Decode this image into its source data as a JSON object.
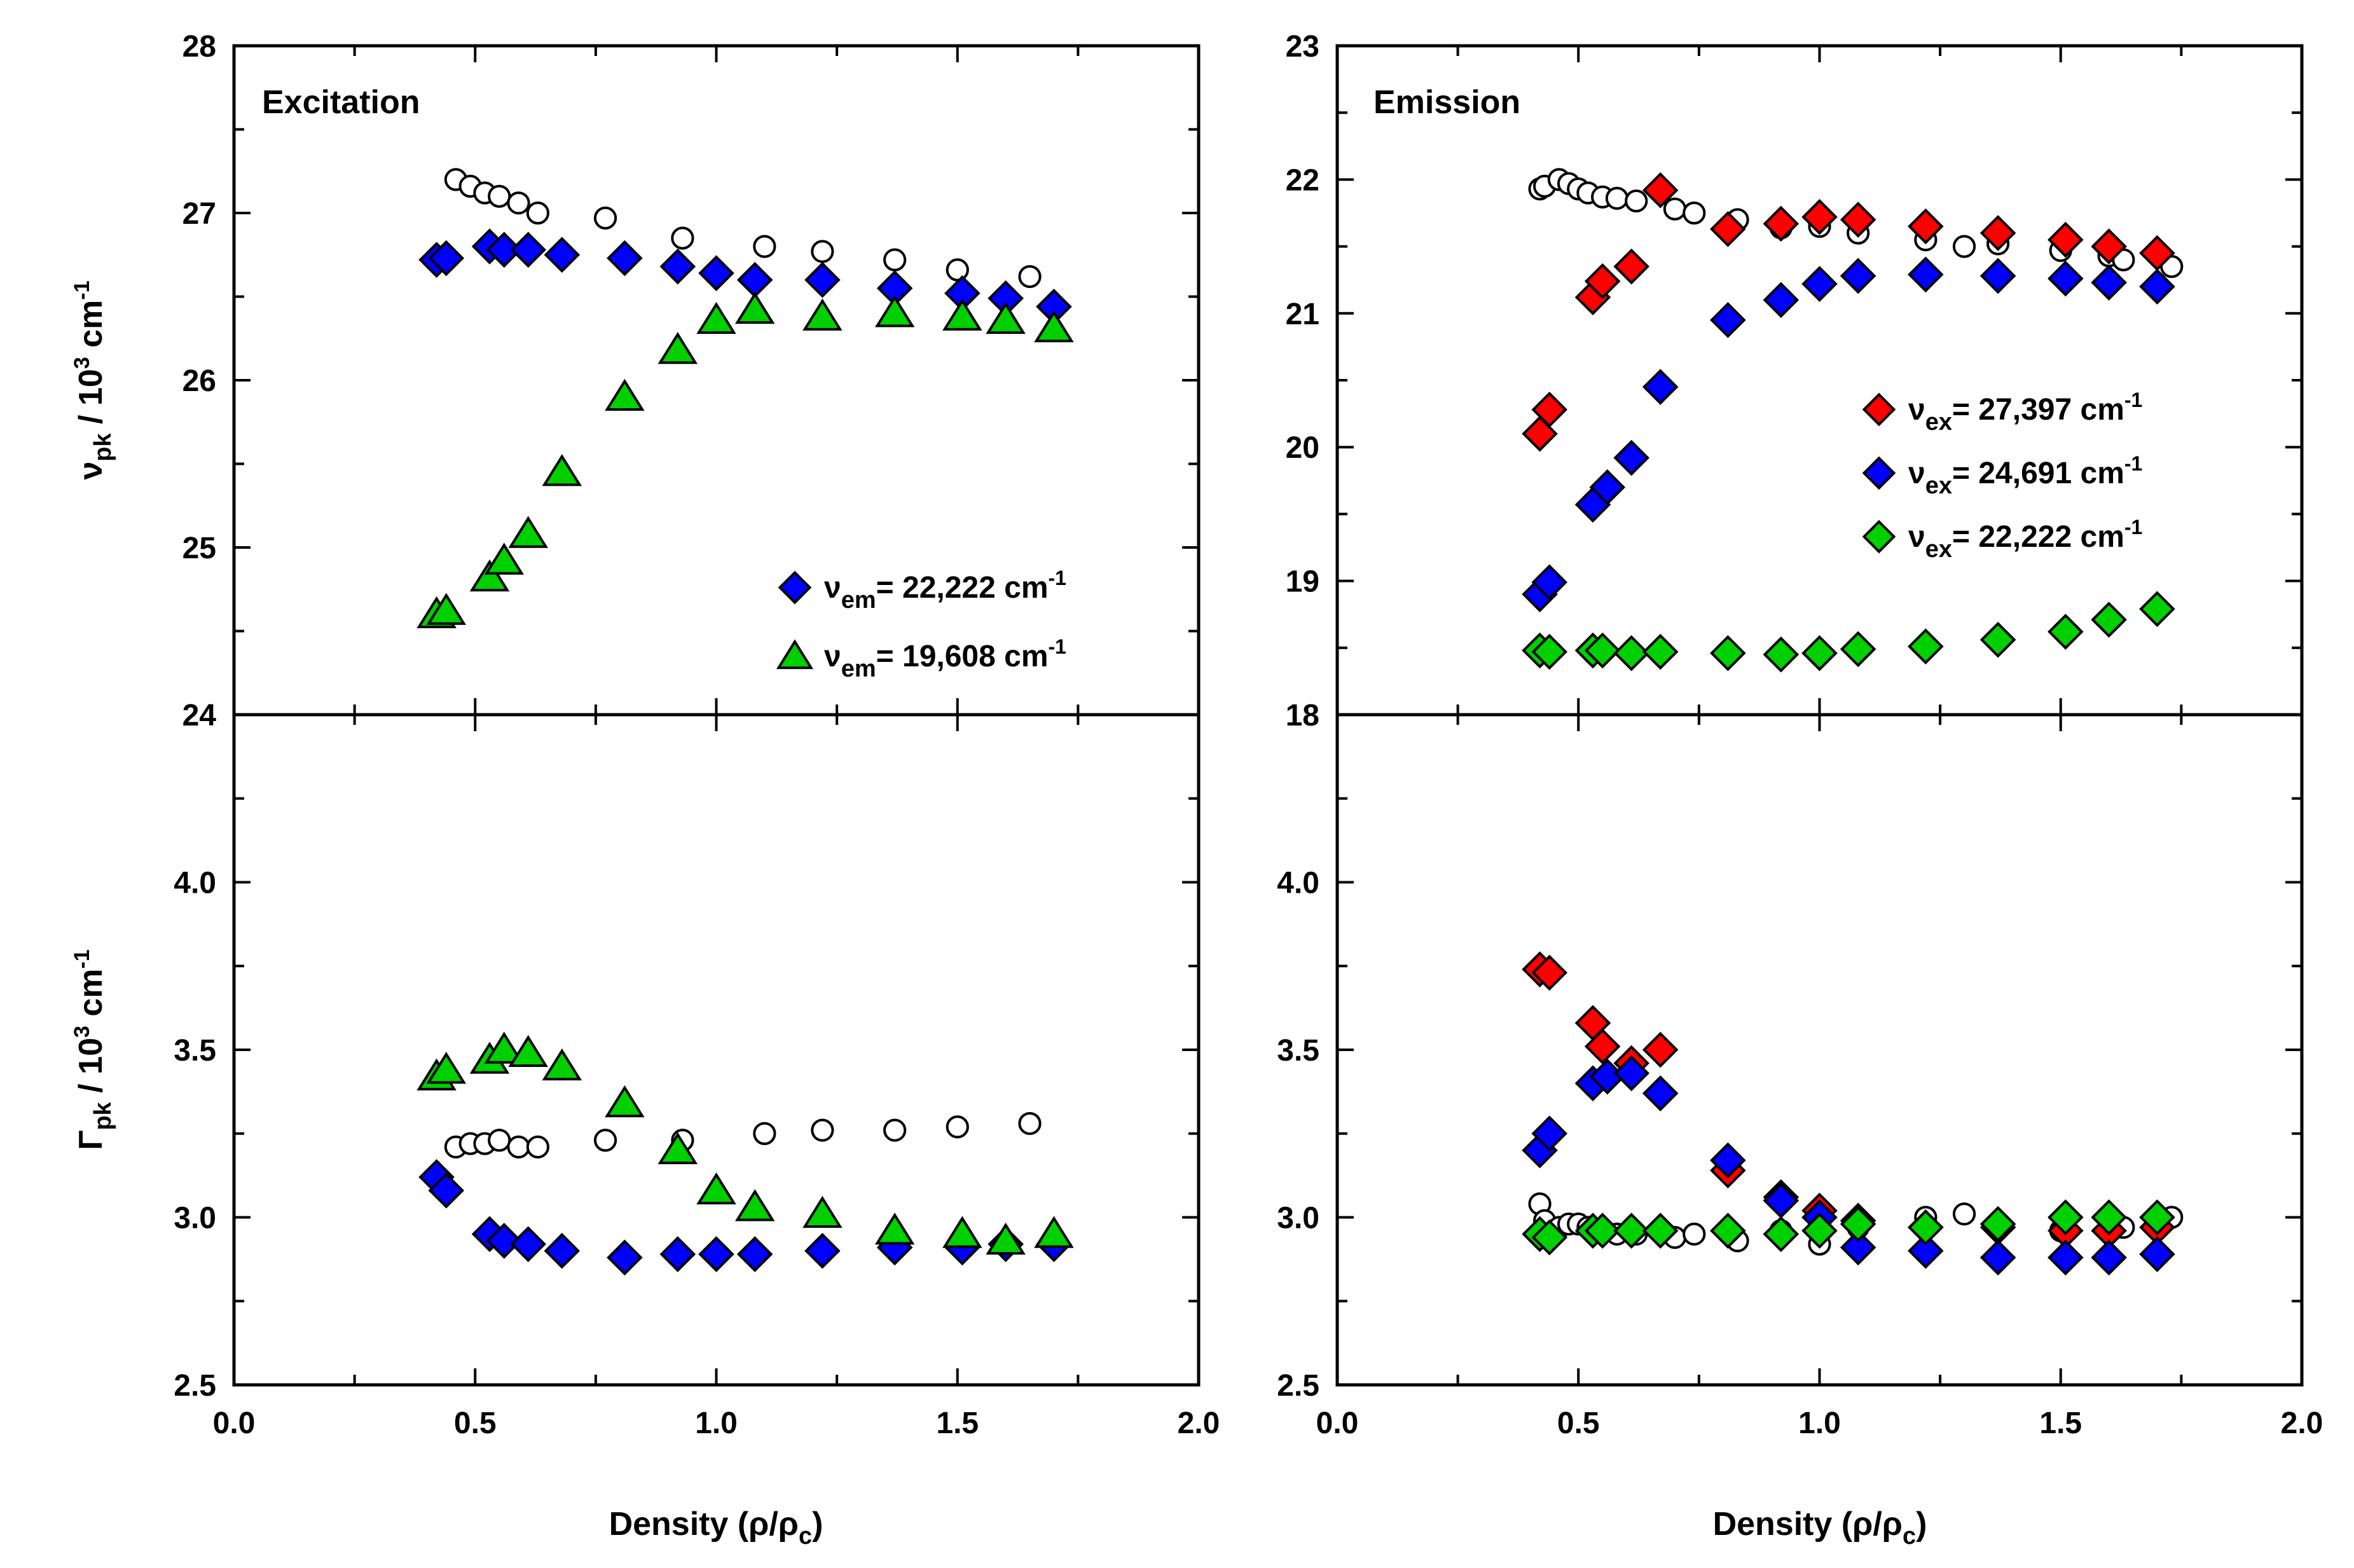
{
  "figure": {
    "x_axis_title": "Density (ρ/ρ",
    "x_axis_title_sub": "c",
    "x_axis_title_end": ")",
    "y_top_title_symbol": "ν",
    "y_top_title_sub": "pk",
    "y_top_title_mid": " / 10",
    "y_top_title_sup": "3",
    "y_top_title_unit": " cm",
    "y_top_title_sup2": "-1",
    "y_bottom_title_symbol": "Γ",
    "y_bottom_title_sub": "pk",
    "y_bottom_title_mid": " / 10",
    "y_bottom_title_sup": "3",
    "y_bottom_title_unit": " cm",
    "y_bottom_title_sup2": "-1"
  },
  "colors": {
    "blue": "#0000ff",
    "green": "#00d000",
    "red": "#ff0000",
    "open": "#ffffff",
    "outline": "#000000"
  },
  "chart_data": [
    {
      "id": "excitation_peak",
      "type": "scatter",
      "title": "Excitation",
      "xlabel": "Density (ρ/ρc)",
      "ylabel": "νpk / 10^3 cm^-1",
      "xlim": [
        0,
        2
      ],
      "ylim": [
        24,
        28
      ],
      "yticks": [
        "24",
        "25",
        "26",
        "27",
        "28"
      ],
      "xticks": [
        "0.0",
        "0.5",
        "1.0",
        "1.5",
        "2.0"
      ],
      "legend_position": "bottom-right",
      "series": [
        {
          "name": "open",
          "marker": "circle",
          "fill": "open",
          "x": [
            0.46,
            0.49,
            0.52,
            0.55,
            0.59,
            0.63,
            0.77,
            0.93,
            1.1,
            1.22,
            1.37,
            1.5,
            1.65
          ],
          "y": [
            27.2,
            27.16,
            27.12,
            27.1,
            27.06,
            27.0,
            26.97,
            26.85,
            26.8,
            26.77,
            26.72,
            26.66,
            26.62
          ]
        },
        {
          "name": "νem= 22,222 cm-1",
          "label_symbol": "ν",
          "label_sub": "em",
          "label_text": "= 22,222 cm",
          "label_sup": "-1",
          "marker": "diamond",
          "fill": "blue",
          "x": [
            0.42,
            0.44,
            0.53,
            0.56,
            0.61,
            0.68,
            0.81,
            0.92,
            1.0,
            1.08,
            1.22,
            1.37,
            1.51,
            1.6,
            1.7
          ],
          "y": [
            26.72,
            26.73,
            26.8,
            26.78,
            26.78,
            26.75,
            26.73,
            26.68,
            26.64,
            26.6,
            26.6,
            26.55,
            26.52,
            26.49,
            26.44
          ]
        },
        {
          "name": "νem= 19,608 cm-1",
          "label_symbol": "ν",
          "label_sub": "em",
          "label_text": "= 19,608 cm",
          "label_sup": "-1",
          "marker": "triangle",
          "fill": "green",
          "x": [
            0.42,
            0.44,
            0.53,
            0.56,
            0.61,
            0.68,
            0.81,
            0.92,
            1.0,
            1.08,
            1.22,
            1.37,
            1.51,
            1.6,
            1.7
          ],
          "y": [
            24.6,
            24.62,
            24.82,
            24.92,
            25.08,
            25.45,
            25.9,
            26.18,
            26.36,
            26.42,
            26.38,
            26.4,
            26.38,
            26.36,
            26.31
          ]
        }
      ]
    },
    {
      "id": "emission_peak",
      "type": "scatter",
      "title": "Emission",
      "xlabel": "Density (ρ/ρc)",
      "ylabel": "",
      "xlim": [
        0,
        2
      ],
      "ylim": [
        18,
        23
      ],
      "yticks": [
        "18",
        "19",
        "20",
        "21",
        "22",
        "23"
      ],
      "xticks": [
        "0.0",
        "0.5",
        "1.0",
        "1.5",
        "2.0"
      ],
      "legend_position": "middle-right",
      "series": [
        {
          "name": "open",
          "marker": "circle",
          "fill": "open",
          "x": [
            0.42,
            0.43,
            0.46,
            0.48,
            0.5,
            0.52,
            0.55,
            0.58,
            0.62,
            0.7,
            0.74,
            0.83,
            0.92,
            1.0,
            1.08,
            1.22,
            1.3,
            1.37,
            1.5,
            1.6,
            1.63,
            1.73
          ],
          "y": [
            21.93,
            21.95,
            22.0,
            21.97,
            21.93,
            21.9,
            21.87,
            21.86,
            21.84,
            21.78,
            21.75,
            21.7,
            21.64,
            21.65,
            21.6,
            21.55,
            21.5,
            21.52,
            21.47,
            21.43,
            21.4,
            21.35
          ]
        },
        {
          "name": "νex= 27,397 cm-1",
          "label_symbol": "ν",
          "label_sub": "ex",
          "label_text": "= 27,397 cm",
          "label_sup": "-1",
          "marker": "diamond",
          "fill": "red",
          "x": [
            0.42,
            0.44,
            0.53,
            0.55,
            0.61,
            0.67,
            0.81,
            0.92,
            1.0,
            1.08,
            1.22,
            1.37,
            1.51,
            1.6,
            1.7
          ],
          "y": [
            20.1,
            20.28,
            21.12,
            21.24,
            21.35,
            21.92,
            21.63,
            21.67,
            21.72,
            21.7,
            21.65,
            21.6,
            21.55,
            21.5,
            21.45
          ]
        },
        {
          "name": "νex= 24,691 cm-1",
          "label_symbol": "ν",
          "label_sub": "ex",
          "label_text": "= 24,691 cm",
          "label_sup": "-1",
          "marker": "diamond",
          "fill": "blue",
          "x": [
            0.42,
            0.44,
            0.53,
            0.56,
            0.61,
            0.67,
            0.81,
            0.92,
            1.0,
            1.08,
            1.22,
            1.37,
            1.51,
            1.6,
            1.7
          ],
          "y": [
            18.9,
            18.99,
            19.57,
            19.7,
            19.92,
            20.45,
            20.95,
            21.1,
            21.22,
            21.28,
            21.29,
            21.28,
            21.26,
            21.23,
            21.2
          ]
        },
        {
          "name": "νex= 22,222 cm-1",
          "label_symbol": "ν",
          "label_sub": "ex",
          "label_text": "= 22,222 cm",
          "label_sup": "-1",
          "marker": "diamond",
          "fill": "green",
          "x": [
            0.42,
            0.44,
            0.53,
            0.55,
            0.61,
            0.67,
            0.81,
            0.92,
            1.0,
            1.08,
            1.22,
            1.37,
            1.51,
            1.6,
            1.7
          ],
          "y": [
            18.48,
            18.47,
            18.48,
            18.48,
            18.46,
            18.47,
            18.46,
            18.45,
            18.46,
            18.49,
            18.51,
            18.56,
            18.62,
            18.71,
            18.79
          ]
        }
      ]
    },
    {
      "id": "excitation_width",
      "type": "scatter",
      "title": "",
      "xlabel": "Density (ρ/ρc)",
      "ylabel": "Γpk / 10^3 cm^-1",
      "xlim": [
        0,
        2
      ],
      "ylim": [
        2.5,
        4.5
      ],
      "yticks": [
        "2.5",
        "3.0",
        "3.5",
        "4.0"
      ],
      "xticks": [
        "0.0",
        "0.5",
        "1.0",
        "1.5",
        "2.0"
      ],
      "series": [
        {
          "name": "open",
          "marker": "circle",
          "fill": "open",
          "x": [
            0.46,
            0.49,
            0.52,
            0.55,
            0.59,
            0.63,
            0.77,
            0.93,
            1.1,
            1.22,
            1.37,
            1.5,
            1.65
          ],
          "y": [
            3.21,
            3.22,
            3.22,
            3.23,
            3.21,
            3.21,
            3.23,
            3.23,
            3.25,
            3.26,
            3.26,
            3.27,
            3.28
          ]
        },
        {
          "name": "νem= 22,222 cm-1",
          "marker": "diamond",
          "fill": "blue",
          "x": [
            0.42,
            0.44,
            0.53,
            0.56,
            0.61,
            0.68,
            0.81,
            0.92,
            1.0,
            1.08,
            1.22,
            1.37,
            1.51,
            1.6,
            1.7
          ],
          "y": [
            3.12,
            3.08,
            2.95,
            2.93,
            2.92,
            2.9,
            2.88,
            2.89,
            2.89,
            2.89,
            2.9,
            2.91,
            2.91,
            2.92,
            2.92
          ]
        },
        {
          "name": "νem= 19,608 cm-1",
          "marker": "triangle",
          "fill": "green",
          "x": [
            0.42,
            0.44,
            0.53,
            0.56,
            0.61,
            0.68,
            0.81,
            0.92,
            1.0,
            1.08,
            1.22,
            1.37,
            1.51,
            1.6,
            1.7
          ],
          "y": [
            3.42,
            3.44,
            3.47,
            3.5,
            3.49,
            3.45,
            3.34,
            3.2,
            3.08,
            3.03,
            3.01,
            2.96,
            2.95,
            2.93,
            2.95
          ]
        }
      ]
    },
    {
      "id": "emission_width",
      "type": "scatter",
      "title": "",
      "xlabel": "Density (ρ/ρc)",
      "ylabel": "",
      "xlim": [
        0,
        2
      ],
      "ylim": [
        2.5,
        4.5
      ],
      "yticks": [
        "2.5",
        "3.0",
        "3.5",
        "4.0"
      ],
      "xticks": [
        "0.0",
        "0.5",
        "1.0",
        "1.5",
        "2.0"
      ],
      "series": [
        {
          "name": "open",
          "marker": "circle",
          "fill": "open",
          "x": [
            0.42,
            0.43,
            0.46,
            0.48,
            0.5,
            0.52,
            0.55,
            0.58,
            0.62,
            0.7,
            0.74,
            0.83,
            0.92,
            1.0,
            1.08,
            1.22,
            1.3,
            1.37,
            1.5,
            1.6,
            1.63,
            1.73
          ],
          "y": [
            3.04,
            2.99,
            2.97,
            2.98,
            2.98,
            2.97,
            2.96,
            2.95,
            2.95,
            2.94,
            2.95,
            2.93,
            2.96,
            2.92,
            2.97,
            3.0,
            3.01,
            2.98,
            2.96,
            2.97,
            2.97,
            3.0
          ]
        },
        {
          "name": "νex= 27,397 cm-1",
          "marker": "diamond",
          "fill": "red",
          "x": [
            0.42,
            0.44,
            0.53,
            0.55,
            0.61,
            0.67,
            0.81,
            0.92,
            1.0,
            1.08,
            1.22,
            1.37,
            1.51,
            1.6,
            1.7
          ],
          "y": [
            3.74,
            3.73,
            3.58,
            3.51,
            3.46,
            3.5,
            3.14,
            3.06,
            3.02,
            2.99,
            2.97,
            2.97,
            2.96,
            2.96,
            2.97
          ]
        },
        {
          "name": "νex= 24,691 cm-1",
          "marker": "diamond",
          "fill": "blue",
          "x": [
            0.42,
            0.44,
            0.53,
            0.56,
            0.61,
            0.67,
            0.81,
            0.92,
            1.0,
            1.08,
            1.22,
            1.37,
            1.51,
            1.6,
            1.7
          ],
          "y": [
            3.2,
            3.25,
            3.4,
            3.42,
            3.43,
            3.37,
            3.17,
            3.05,
            3.0,
            2.91,
            2.9,
            2.88,
            2.88,
            2.88,
            2.89
          ]
        },
        {
          "name": "νex= 22,222 cm-1",
          "marker": "diamond",
          "fill": "green",
          "x": [
            0.42,
            0.44,
            0.53,
            0.55,
            0.61,
            0.67,
            0.81,
            0.92,
            1.0,
            1.08,
            1.22,
            1.37,
            1.51,
            1.6,
            1.7
          ],
          "y": [
            2.95,
            2.94,
            2.96,
            2.96,
            2.96,
            2.96,
            2.96,
            2.95,
            2.96,
            2.98,
            2.97,
            2.98,
            3.0,
            3.0,
            3.0
          ]
        }
      ]
    }
  ]
}
